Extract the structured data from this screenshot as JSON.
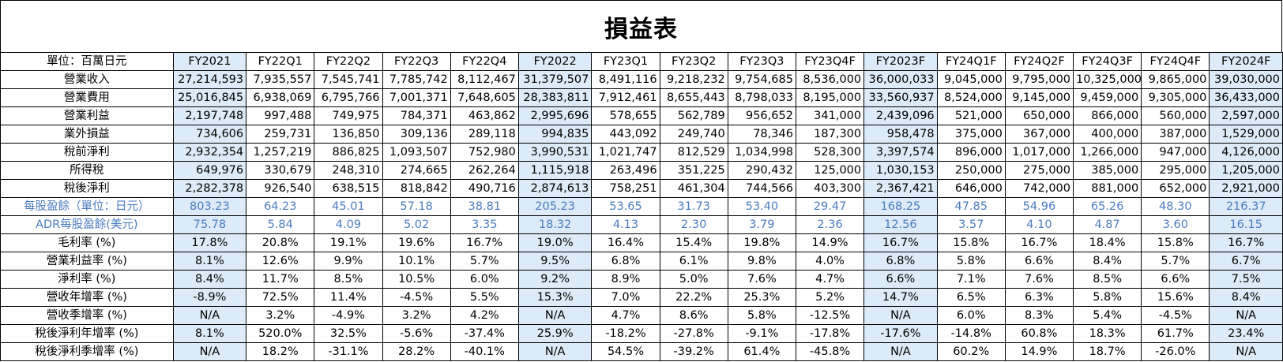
{
  "title": "損益表",
  "unit_label": "單位：百萬日元",
  "columns": [
    {
      "label": "FY2021",
      "highlight": true
    },
    {
      "label": "FY22Q1",
      "highlight": false
    },
    {
      "label": "FY22Q2",
      "highlight": false
    },
    {
      "label": "FY22Q3",
      "highlight": false
    },
    {
      "label": "FY22Q4",
      "highlight": false
    },
    {
      "label": "FY2022",
      "highlight": true
    },
    {
      "label": "FY23Q1",
      "highlight": false
    },
    {
      "label": "FY23Q2",
      "highlight": false
    },
    {
      "label": "FY23Q3",
      "highlight": false
    },
    {
      "label": "FY23Q4F",
      "highlight": false
    },
    {
      "label": "FY2023F",
      "highlight": true
    },
    {
      "label": "FY24Q1F",
      "highlight": false
    },
    {
      "label": "FY24Q2F",
      "highlight": false
    },
    {
      "label": "FY24Q3F",
      "highlight": false
    },
    {
      "label": "FY24Q4F",
      "highlight": false
    },
    {
      "label": "FY2024F",
      "highlight": true
    }
  ],
  "rows": [
    {
      "label": "營業收入",
      "style": "num",
      "values": [
        "27,214,593",
        "7,935,557",
        "7,545,741",
        "7,785,742",
        "8,112,467",
        "31,379,507",
        "8,491,116",
        "9,218,232",
        "9,754,685",
        "8,536,000",
        "36,000,033",
        "9,045,000",
        "9,795,000",
        "10,325,000",
        "9,865,000",
        "39,030,000"
      ]
    },
    {
      "label": "營業費用",
      "style": "num",
      "values": [
        "25,016,845",
        "6,938,069",
        "6,795,766",
        "7,001,371",
        "7,648,605",
        "28,383,811",
        "7,912,461",
        "8,655,443",
        "8,798,033",
        "8,195,000",
        "33,560,937",
        "8,524,000",
        "9,145,000",
        "9,459,000",
        "9,305,000",
        "36,433,000"
      ]
    },
    {
      "label": "營業利益",
      "style": "num",
      "values": [
        "2,197,748",
        "997,488",
        "749,975",
        "784,371",
        "463,862",
        "2,995,696",
        "578,655",
        "562,789",
        "956,652",
        "341,000",
        "2,439,096",
        "521,000",
        "650,000",
        "866,000",
        "560,000",
        "2,597,000"
      ]
    },
    {
      "label": "業外損益",
      "style": "num",
      "values": [
        "734,606",
        "259,731",
        "136,850",
        "309,136",
        "289,118",
        "994,835",
        "443,092",
        "249,740",
        "78,346",
        "187,300",
        "958,478",
        "375,000",
        "367,000",
        "400,000",
        "387,000",
        "1,529,000"
      ]
    },
    {
      "label": "稅前淨利",
      "style": "num",
      "values": [
        "2,932,354",
        "1,257,219",
        "886,825",
        "1,093,507",
        "752,980",
        "3,990,531",
        "1,021,747",
        "812,529",
        "1,034,998",
        "528,300",
        "3,397,574",
        "896,000",
        "1,017,000",
        "1,266,000",
        "947,000",
        "4,126,000"
      ]
    },
    {
      "label": "所得稅",
      "style": "num",
      "values": [
        "649,976",
        "330,679",
        "248,310",
        "274,665",
        "262,264",
        "1,115,918",
        "263,496",
        "351,225",
        "290,432",
        "125,000",
        "1,030,153",
        "250,000",
        "275,000",
        "385,000",
        "295,000",
        "1,205,000"
      ]
    },
    {
      "label": "稅後淨利",
      "style": "num",
      "values": [
        "2,282,378",
        "926,540",
        "638,515",
        "818,842",
        "490,716",
        "2,874,613",
        "758,251",
        "461,304",
        "744,566",
        "403,300",
        "2,367,421",
        "646,000",
        "742,000",
        "881,000",
        "652,000",
        "2,921,000"
      ]
    },
    {
      "label": "每股盈餘（單位：日元）",
      "style": "blue",
      "values": [
        "803.23",
        "64.23",
        "45.01",
        "57.18",
        "38.81",
        "205.23",
        "53.65",
        "31.73",
        "53.40",
        "29.47",
        "168.25",
        "47.85",
        "54.96",
        "65.26",
        "48.30",
        "216.37"
      ]
    },
    {
      "label": "ADR每股盈餘(美元)",
      "style": "blue",
      "values": [
        "75.78",
        "5.84",
        "4.09",
        "5.02",
        "3.35",
        "18.32",
        "4.13",
        "2.30",
        "3.79",
        "2.36",
        "12.56",
        "3.57",
        "4.10",
        "4.87",
        "3.60",
        "16.15"
      ]
    },
    {
      "label": "毛利率 (%)",
      "style": "pct",
      "values": [
        "17.8%",
        "20.8%",
        "19.1%",
        "19.6%",
        "16.7%",
        "19.0%",
        "16.4%",
        "15.4%",
        "19.8%",
        "14.9%",
        "16.7%",
        "15.8%",
        "16.7%",
        "18.4%",
        "15.8%",
        "16.7%"
      ]
    },
    {
      "label": "營業利益率 (%)",
      "style": "pct",
      "values": [
        "8.1%",
        "12.6%",
        "9.9%",
        "10.1%",
        "5.7%",
        "9.5%",
        "6.8%",
        "6.1%",
        "9.8%",
        "4.0%",
        "6.8%",
        "5.8%",
        "6.6%",
        "8.4%",
        "5.7%",
        "6.7%"
      ]
    },
    {
      "label": "淨利率 (%)",
      "style": "pct",
      "values": [
        "8.4%",
        "11.7%",
        "8.5%",
        "10.5%",
        "6.0%",
        "9.2%",
        "8.9%",
        "5.0%",
        "7.6%",
        "4.7%",
        "6.6%",
        "7.1%",
        "7.6%",
        "8.5%",
        "6.6%",
        "7.5%"
      ]
    },
    {
      "label": "營收年增率 (%)",
      "style": "pct",
      "values": [
        "-8.9%",
        "72.5%",
        "11.4%",
        "-4.5%",
        "5.5%",
        "15.3%",
        "7.0%",
        "22.2%",
        "25.3%",
        "5.2%",
        "14.7%",
        "6.5%",
        "6.3%",
        "5.8%",
        "15.6%",
        "8.4%"
      ]
    },
    {
      "label": "營收季增率 (%)",
      "style": "pct",
      "values": [
        "N/A",
        "3.2%",
        "-4.9%",
        "3.2%",
        "4.2%",
        "N/A",
        "4.7%",
        "8.6%",
        "5.8%",
        "-12.5%",
        "N/A",
        "6.0%",
        "8.3%",
        "5.4%",
        "-4.5%",
        "N/A"
      ]
    },
    {
      "label": "稅後淨利年增率 (%)",
      "style": "pct",
      "values": [
        "8.1%",
        "520.0%",
        "32.5%",
        "-5.6%",
        "-37.4%",
        "25.9%",
        "-18.2%",
        "-27.8%",
        "-9.1%",
        "-17.8%",
        "-17.6%",
        "-14.8%",
        "60.8%",
        "18.3%",
        "61.7%",
        "23.4%"
      ]
    },
    {
      "label": "稅後淨利季增率 (%)",
      "style": "pct",
      "values": [
        "N/A",
        "18.2%",
        "-31.1%",
        "28.2%",
        "-40.1%",
        "N/A",
        "54.5%",
        "-39.2%",
        "61.4%",
        "-45.8%",
        "N/A",
        "60.2%",
        "14.9%",
        "18.7%",
        "-26.0%",
        "N/A"
      ]
    }
  ],
  "colors": {
    "highlight": "#dcebf7",
    "eps_text": "#4a7cc0"
  }
}
